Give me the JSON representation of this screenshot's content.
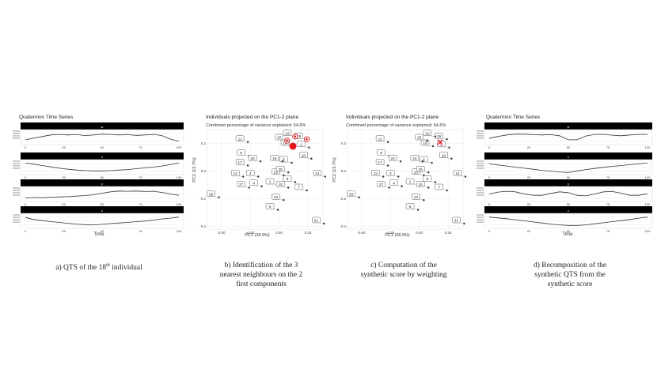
{
  "panels": {
    "a": {
      "title": "Quaternion Time Series",
      "caption_pre": "a) QTS of the 18",
      "caption_sup": "th",
      "caption_post": " individual",
      "xlabel": "Time",
      "components": [
        "w",
        "x",
        "y",
        "z"
      ]
    },
    "b": {
      "title": "Individuals projected on the PC1-2 plane",
      "subtitle": "Combined percentage of variance explained: 54.6%",
      "xlabel": "PC1 (38.9%)",
      "ylabel": "PC2 (15.7%)",
      "caption_lines": [
        "b) Identification of the 3",
        "nearest neighbours on the 2",
        "first components"
      ]
    },
    "c": {
      "title": "Individuals projected on the PC1-2 plane",
      "subtitle": "Combined percentage of variance explained: 54.6%",
      "xlabel": "PC1 (38.9%)",
      "ylabel": "PC2 (15.7%)",
      "caption_lines": [
        "c) Computation of the",
        "synthetic score by weighting"
      ]
    },
    "d": {
      "title": "Quaternion Time Series",
      "xlabel": "Time",
      "components": [
        "w",
        "x",
        "y",
        "z"
      ],
      "caption_lines": [
        "d) Recomposition of the",
        "synthetic QTS from the",
        "synthetic score"
      ]
    }
  },
  "chart_data": [
    {
      "type": "line",
      "panel": "a",
      "x_ticks": [
        "0",
        "25",
        "50",
        "75",
        "100"
      ],
      "series": [
        {
          "name": "w",
          "values": [
            0.3,
            0.42,
            0.55,
            0.66,
            0.7,
            0.66,
            0.68,
            0.62,
            0.66,
            0.72,
            0.7,
            0.66,
            0.68,
            0.63,
            0.66,
            0.7,
            0.62,
            0.35,
            0.2
          ]
        },
        {
          "name": "x",
          "values": [
            0.8,
            0.72,
            0.62,
            0.52,
            0.42,
            0.34,
            0.28,
            0.24,
            0.22,
            0.22,
            0.24,
            0.28,
            0.32,
            0.38,
            0.44,
            0.5,
            0.58,
            0.68,
            0.8
          ]
        },
        {
          "name": "y",
          "values": [
            0.2,
            0.24,
            0.22,
            0.26,
            0.28,
            0.3,
            0.34,
            0.38,
            0.44,
            0.56,
            0.66,
            0.72,
            0.7,
            0.72,
            0.68,
            0.7,
            0.62,
            0.5,
            0.4
          ]
        },
        {
          "name": "z",
          "values": [
            0.75,
            0.6,
            0.52,
            0.44,
            0.38,
            0.32,
            0.26,
            0.22,
            0.2,
            0.24,
            0.3,
            0.34,
            0.38,
            0.44,
            0.48,
            0.56,
            0.64,
            0.7,
            0.78
          ]
        }
      ]
    },
    {
      "type": "scatter",
      "panel": "b",
      "x_ticks": [
        "-0.50",
        "-0.25",
        "0.00",
        "0.25"
      ],
      "y_ticks": [
        "0.2",
        "0.0",
        "-0.2",
        "-0.4"
      ],
      "xlim": [
        -0.62,
        0.38
      ],
      "ylim": [
        -0.42,
        0.3
      ],
      "points": [
        {
          "label": "1",
          "x": -0.01,
          "y": -0.1
        },
        {
          "label": "2",
          "x": 0.26,
          "y": 0.17
        },
        {
          "label": "3",
          "x": -0.18,
          "y": -0.04
        },
        {
          "label": "4",
          "x": -0.15,
          "y": -0.11
        },
        {
          "label": "5",
          "x": 0.11,
          "y": 0.06
        },
        {
          "label": "6",
          "x": -0.01,
          "y": -0.28
        },
        {
          "label": "7",
          "x": 0.24,
          "y": -0.14
        },
        {
          "label": "8",
          "x": -0.26,
          "y": 0.11
        },
        {
          "label": "9",
          "x": 0.14,
          "y": -0.08
        },
        {
          "label": "10",
          "x": 0.28,
          "y": 0.09
        },
        {
          "label": "11",
          "x": -0.27,
          "y": 0.21
        },
        {
          "label": "12",
          "x": -0.31,
          "y": -0.04
        },
        {
          "label": "13",
          "x": 0.04,
          "y": -0.21
        },
        {
          "label": "14",
          "x": 0.4,
          "y": -0.04
        },
        {
          "label": "15",
          "x": 0.08,
          "y": -0.12
        },
        {
          "label": "16",
          "x": 0.03,
          "y": 0.07
        },
        {
          "label": "17",
          "x": -0.27,
          "y": 0.04
        },
        {
          "label": "18",
          "x": 0.12,
          "y": 0.18
        },
        {
          "label": "19",
          "x": 0.24,
          "y": 0.23
        },
        {
          "label": "20",
          "x": 0.07,
          "y": 0.22
        },
        {
          "label": "21",
          "x": 0.39,
          "y": -0.38
        },
        {
          "label": "22",
          "x": 0.14,
          "y": 0.25
        },
        {
          "label": "23",
          "x": 0.04,
          "y": -0.03
        },
        {
          "label": "24",
          "x": -0.16,
          "y": 0.07
        },
        {
          "label": "25",
          "x": 0.08,
          "y": -0.01
        },
        {
          "label": "26",
          "x": -0.52,
          "y": -0.19
        },
        {
          "label": "27",
          "x": -0.26,
          "y": -0.12
        }
      ]
    },
    {
      "type": "scatter",
      "panel": "c",
      "x_ticks": [
        "-0.50",
        "-0.25",
        "0.00",
        "0.25"
      ],
      "y_ticks": [
        "0.2",
        "0.0",
        "-0.2",
        "-0.4"
      ],
      "xlim": [
        -0.62,
        0.38
      ],
      "ylim": [
        -0.42,
        0.3
      ],
      "points": [
        {
          "label": "1",
          "x": -0.01,
          "y": -0.1
        },
        {
          "label": "2",
          "x": 0.26,
          "y": 0.17
        },
        {
          "label": "3",
          "x": -0.18,
          "y": -0.04
        },
        {
          "label": "4",
          "x": -0.15,
          "y": -0.11
        },
        {
          "label": "5",
          "x": 0.11,
          "y": 0.06
        },
        {
          "label": "6",
          "x": -0.01,
          "y": -0.28
        },
        {
          "label": "7",
          "x": 0.24,
          "y": -0.14
        },
        {
          "label": "8",
          "x": -0.26,
          "y": 0.11
        },
        {
          "label": "9",
          "x": 0.14,
          "y": -0.08
        },
        {
          "label": "10",
          "x": 0.28,
          "y": 0.09
        },
        {
          "label": "11",
          "x": -0.27,
          "y": 0.21
        },
        {
          "label": "12",
          "x": -0.31,
          "y": -0.04
        },
        {
          "label": "13",
          "x": 0.04,
          "y": -0.21
        },
        {
          "label": "14",
          "x": 0.4,
          "y": -0.04
        },
        {
          "label": "15",
          "x": 0.08,
          "y": -0.12
        },
        {
          "label": "16",
          "x": 0.03,
          "y": 0.07
        },
        {
          "label": "17",
          "x": -0.27,
          "y": 0.04
        },
        {
          "label": "18",
          "x": 0.12,
          "y": 0.18
        },
        {
          "label": "19",
          "x": 0.24,
          "y": 0.23
        },
        {
          "label": "20",
          "x": 0.07,
          "y": 0.22
        },
        {
          "label": "21",
          "x": 0.39,
          "y": -0.38
        },
        {
          "label": "22",
          "x": 0.14,
          "y": 0.25
        },
        {
          "label": "23",
          "x": 0.04,
          "y": -0.03
        },
        {
          "label": "24",
          "x": -0.16,
          "y": 0.07
        },
        {
          "label": "25",
          "x": 0.08,
          "y": -0.01
        },
        {
          "label": "26",
          "x": -0.52,
          "y": -0.19
        },
        {
          "label": "27",
          "x": -0.26,
          "y": -0.12
        }
      ]
    },
    {
      "type": "line",
      "panel": "d",
      "x_ticks": [
        "0",
        "25",
        "50",
        "75",
        "100"
      ],
      "series": [
        {
          "name": "w",
          "values": [
            0.4,
            0.55,
            0.66,
            0.72,
            0.72,
            0.68,
            0.66,
            0.68,
            0.6,
            0.3,
            0.3,
            0.58,
            0.7,
            0.7,
            0.64,
            0.6,
            0.66,
            0.7,
            0.7
          ]
        },
        {
          "name": "x",
          "values": [
            0.74,
            0.66,
            0.58,
            0.5,
            0.42,
            0.34,
            0.26,
            0.2,
            0.14,
            0.1,
            0.22,
            0.32,
            0.4,
            0.48,
            0.56,
            0.62,
            0.68,
            0.74,
            0.8
          ]
        },
        {
          "name": "y",
          "values": [
            0.5,
            0.64,
            0.7,
            0.66,
            0.5,
            0.4,
            0.4,
            0.54,
            0.66,
            0.6,
            0.4,
            0.36,
            0.5,
            0.66,
            0.68,
            0.56,
            0.4,
            0.4,
            0.52
          ]
        },
        {
          "name": "z",
          "values": [
            0.78,
            0.72,
            0.66,
            0.58,
            0.5,
            0.42,
            0.34,
            0.26,
            0.2,
            0.16,
            0.16,
            0.2,
            0.28,
            0.36,
            0.44,
            0.52,
            0.6,
            0.7,
            0.78
          ]
        }
      ]
    }
  ],
  "highlight": {
    "target": "18",
    "neighbours": [
      "20",
      "22",
      "19"
    ],
    "colors": {
      "marker": "#e8141b",
      "text": "#222222",
      "label_border": "#555555"
    }
  }
}
